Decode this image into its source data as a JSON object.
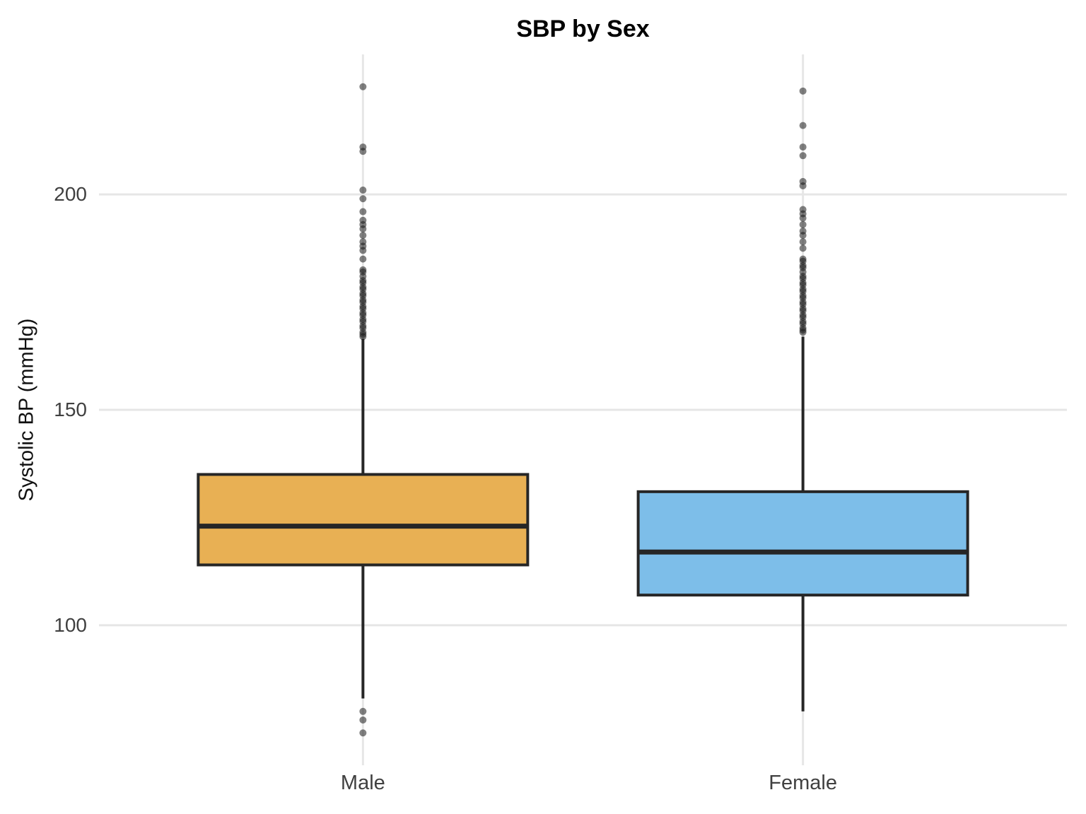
{
  "chart_data": {
    "type": "boxplot",
    "title": "SBP by Sex",
    "xlabel": "",
    "ylabel": "Systolic BP (mmHg)",
    "yticks": [
      100,
      150,
      200
    ],
    "ylim": [
      67.5,
      232.5
    ],
    "grid": "major-only",
    "legend": "none",
    "panel_background": "#ffffff",
    "gridline_color": "#e6e6e6",
    "box_stroke_color": "#262626",
    "outlier_color": "rgba(25,25,25,0.55)",
    "categories": [
      "Male",
      "Female"
    ],
    "series": [
      {
        "name": "Male",
        "fill": "#E8B054",
        "q1": 114,
        "median": 123,
        "q3": 135,
        "whisker_low": 83,
        "whisker_high": 166.5,
        "outliers": [
          225,
          211,
          210,
          201,
          199,
          196,
          194,
          193,
          192,
          190.5,
          189,
          188,
          187,
          185,
          182.5,
          182,
          181,
          180,
          179.5,
          178.5,
          178,
          177,
          176.5,
          175.5,
          175,
          174,
          173.5,
          172.5,
          172,
          171,
          170.5,
          169.5,
          169,
          168,
          167.5,
          167,
          80,
          78,
          75
        ]
      },
      {
        "name": "Female",
        "fill": "#7DBEE9",
        "q1": 107,
        "median": 117,
        "q3": 131,
        "whisker_low": 80,
        "whisker_high": 167,
        "outliers": [
          224,
          216,
          211,
          209,
          203,
          202,
          196.5,
          195.5,
          194.5,
          193,
          191.5,
          190.5,
          189,
          187.5,
          185,
          184.5,
          183.5,
          183,
          182,
          181,
          180.5,
          179.5,
          179,
          178,
          177.5,
          176.5,
          176,
          175,
          174.5,
          173.5,
          173,
          172,
          171.5,
          170.5,
          170,
          169,
          168.5,
          168
        ]
      }
    ]
  }
}
